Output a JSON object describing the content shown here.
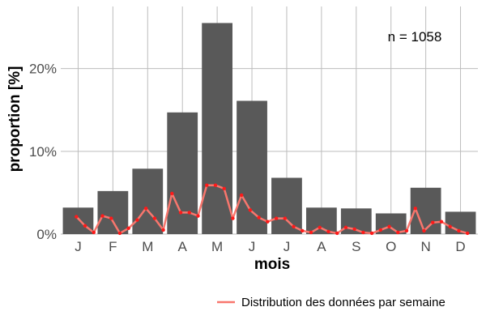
{
  "chart_data": {
    "type": "bar",
    "xlabel": "mois",
    "ylabel": "proportion [%]",
    "categories": [
      "J",
      "F",
      "M",
      "A",
      "M",
      "J",
      "J",
      "A",
      "S",
      "O",
      "N",
      "D"
    ],
    "ylim": [
      0,
      27.5
    ],
    "yticks": [
      0,
      10,
      20
    ],
    "ytick_labels": [
      "0%",
      "10%",
      "20%"
    ],
    "grid": true,
    "annotation": "n = 1058",
    "legend_position": "bottom-right",
    "colors": {
      "bar": "#595959",
      "line": "#f8766d",
      "points": "#ff1a1a"
    },
    "series": [
      {
        "values": [
          3.2,
          5.2,
          7.9,
          14.7,
          25.5,
          16.1,
          6.8,
          3.2,
          3.1,
          2.5,
          5.6,
          2.7
        ]
      },
      {
        "name": "Distribution des données par semaine",
        "type": "line",
        "x": [
          0.95,
          1.2,
          1.45,
          1.7,
          1.95,
          2.2,
          2.45,
          2.7,
          2.95,
          3.2,
          3.45,
          3.7,
          3.95,
          4.2,
          4.45,
          4.7,
          4.95,
          5.2,
          5.45,
          5.7,
          5.95,
          6.2,
          6.45,
          6.7,
          6.95,
          7.2,
          7.45,
          7.7,
          7.95,
          8.2,
          8.45,
          8.7,
          8.95,
          9.2,
          9.45,
          9.7,
          9.95,
          10.2,
          10.45,
          10.7,
          10.95,
          11.2,
          11.45,
          11.7,
          11.95,
          12.2
        ],
        "values": [
          2.1,
          1.0,
          0.2,
          2.2,
          1.9,
          0.1,
          0.7,
          1.7,
          3.1,
          1.9,
          0.5,
          4.9,
          2.6,
          2.6,
          2.2,
          5.9,
          5.9,
          5.5,
          1.9,
          4.7,
          2.9,
          2.0,
          1.5,
          1.9,
          1.9,
          0.9,
          0.4,
          0.2,
          0.8,
          0.3,
          0.1,
          0.8,
          0.6,
          0.2,
          0.1,
          0.5,
          0.9,
          0.2,
          0.4,
          3.1,
          0.4,
          1.4,
          1.5,
          0.9,
          0.4,
          0.1
        ]
      }
    ]
  }
}
